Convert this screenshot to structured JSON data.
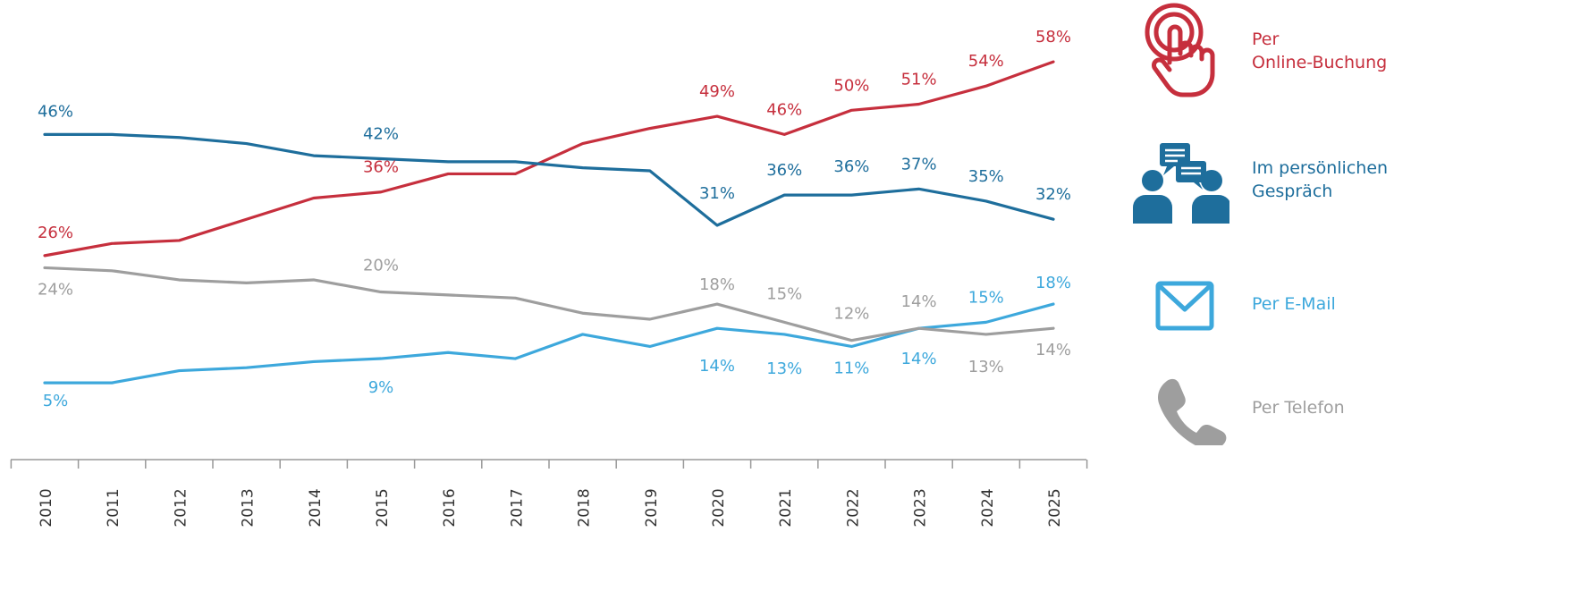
{
  "chart_data": {
    "type": "line",
    "x": [
      "2010",
      "2011",
      "2012",
      "2013",
      "2014",
      "2015",
      "2016",
      "2017",
      "2018",
      "2019",
      "2020",
      "2021",
      "2022",
      "2023",
      "2024",
      "2025"
    ],
    "ylim": [
      0,
      62
    ],
    "grid": false,
    "legend_placement": "right",
    "series": [
      {
        "name": "Per Online-Buchung",
        "color": "#c62f3d",
        "values": [
          26,
          28,
          28.5,
          32,
          35.5,
          36.5,
          39.5,
          39.5,
          44.5,
          47,
          49,
          46,
          50,
          51,
          54,
          58
        ],
        "labels": [
          {
            "i": 0,
            "text": "26%"
          },
          {
            "i": 5,
            "text": "36%"
          },
          {
            "i": 10,
            "text": "49%"
          },
          {
            "i": 11,
            "text": "46%"
          },
          {
            "i": 12,
            "text": "50%"
          },
          {
            "i": 13,
            "text": "51%"
          },
          {
            "i": 14,
            "text": "54%"
          },
          {
            "i": 15,
            "text": "58%"
          }
        ]
      },
      {
        "name": "Im persönlichen Gespräch",
        "color": "#1e6e9c",
        "values": [
          46,
          46,
          45.5,
          44.5,
          42.5,
          42,
          41.5,
          41.5,
          40.5,
          40,
          31,
          36,
          36,
          37,
          35,
          32
        ],
        "labels": [
          {
            "i": 0,
            "text": "46%"
          },
          {
            "i": 5,
            "text": "42%"
          },
          {
            "i": 10,
            "text": "31%"
          },
          {
            "i": 11,
            "text": "36%"
          },
          {
            "i": 12,
            "text": "36%"
          },
          {
            "i": 13,
            "text": "37%"
          },
          {
            "i": 14,
            "text": "35%"
          },
          {
            "i": 15,
            "text": "32%"
          }
        ]
      },
      {
        "name": "Per E-Mail",
        "color": "#3da8dc",
        "values": [
          5,
          5,
          7,
          7.5,
          8.5,
          9,
          10,
          9,
          13,
          11,
          14,
          13,
          11,
          14,
          15,
          18
        ],
        "labels": [
          {
            "i": 0,
            "text": "5%"
          },
          {
            "i": 5,
            "text": "9%"
          },
          {
            "i": 10,
            "text": "14%"
          },
          {
            "i": 11,
            "text": "13%"
          },
          {
            "i": 12,
            "text": "11%"
          },
          {
            "i": 13,
            "text": "14%"
          },
          {
            "i": 14,
            "text": "15%"
          },
          {
            "i": 15,
            "text": "18%"
          }
        ]
      },
      {
        "name": "Per Telefon",
        "color": "#9e9e9e",
        "values": [
          24,
          23.5,
          22,
          21.5,
          22,
          20,
          19.5,
          19,
          16.5,
          15.5,
          18,
          15,
          12,
          14,
          13,
          14
        ],
        "labels": [
          {
            "i": 0,
            "text": "24%"
          },
          {
            "i": 5,
            "text": "20%"
          },
          {
            "i": 10,
            "text": "18%"
          },
          {
            "i": 11,
            "text": "15%"
          },
          {
            "i": 12,
            "text": "12%"
          },
          {
            "i": 13,
            "text": "14%"
          },
          {
            "i": 14,
            "text": "13%"
          },
          {
            "i": 15,
            "text": "14%"
          }
        ]
      }
    ]
  },
  "legend": [
    {
      "lines": [
        "Per",
        "Online-Buchung"
      ],
      "color": "#c62f3d",
      "icon": "touch-hand-icon"
    },
    {
      "lines": [
        "Im persönlichen",
        "Gespräch"
      ],
      "color": "#1e6e9c",
      "icon": "conversation-icon"
    },
    {
      "lines": [
        "Per E-Mail"
      ],
      "color": "#3da8dc",
      "icon": "envelope-icon"
    },
    {
      "lines": [
        "Per Telefon"
      ],
      "color": "#9e9e9e",
      "icon": "phone-icon"
    }
  ]
}
